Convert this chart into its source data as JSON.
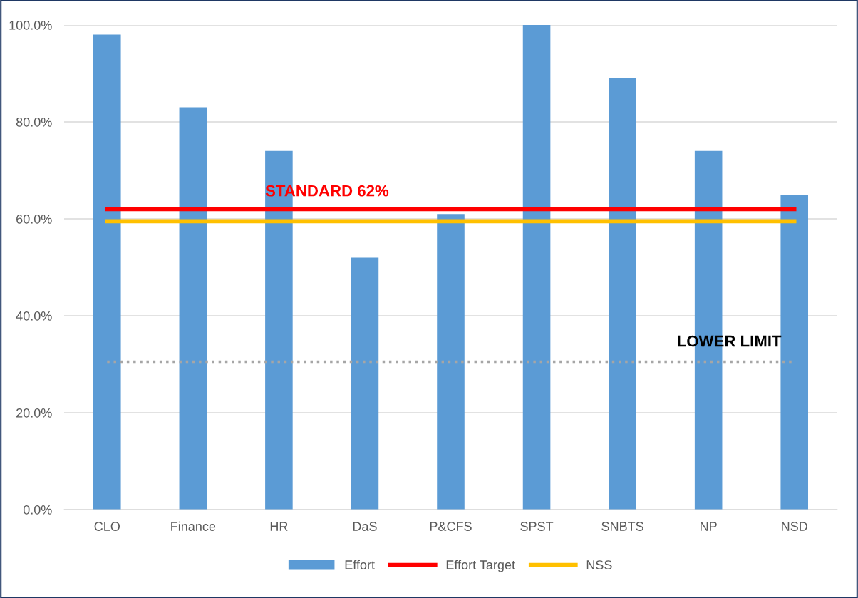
{
  "chart_data": {
    "type": "bar",
    "categories": [
      "CLO",
      "Finance",
      "HR",
      "DaS",
      "P&CFS",
      "SPST",
      "SNBTS",
      "NP",
      "NSD"
    ],
    "series": [
      {
        "name": "Effort",
        "color": "#5b9bd5",
        "values": [
          98,
          83,
          74,
          52,
          61,
          100,
          89,
          74,
          65
        ]
      },
      {
        "name": "Effort Target",
        "type": "line",
        "color": "#ff0000",
        "line_style": "solid",
        "values": [
          62,
          62,
          62,
          62,
          62,
          62,
          62,
          62,
          62
        ]
      },
      {
        "name": "NSS",
        "type": "line",
        "color": "#ffc000",
        "line_style": "solid",
        "values": [
          59.5,
          59.5,
          59.5,
          59.5,
          59.5,
          59.5,
          59.5,
          59.5,
          59.5
        ]
      },
      {
        "type": "line",
        "color": "#a6a6a6",
        "line_style": "dotted",
        "values": [
          30.5,
          30.5,
          30.5,
          30.5,
          30.5,
          30.5,
          30.5,
          30.5,
          30.5
        ]
      }
    ],
    "annotations": [
      "STANDARD 62%",
      "LOWER LIMIT"
    ],
    "ylim": [
      0,
      100
    ],
    "yticks": [
      {
        "value": 0,
        "label": "0.0%"
      },
      {
        "value": 20,
        "label": "20.0%"
      },
      {
        "value": 40,
        "label": "40.0%"
      },
      {
        "value": 60,
        "label": "60.0%"
      },
      {
        "value": 80,
        "label": "80.0%"
      },
      {
        "value": 100,
        "label": "100.0%"
      }
    ],
    "grid": "y",
    "legend": "bottom"
  }
}
